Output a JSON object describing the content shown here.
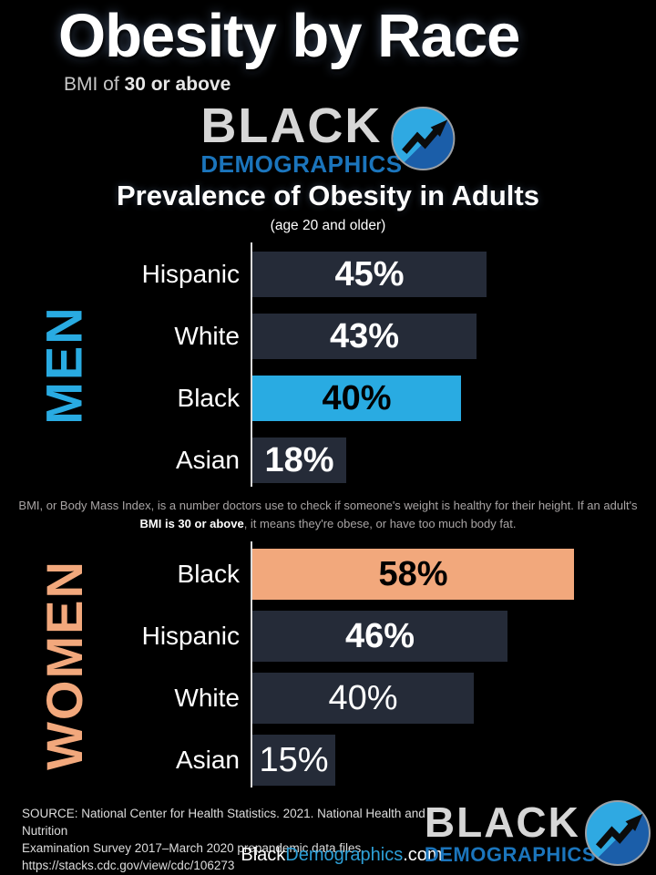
{
  "header": {
    "title": "Obesity by Race",
    "subtitle_prefix": "BMI of ",
    "subtitle_bold": "30 or above"
  },
  "logo": {
    "word1": "BLACK",
    "word2": "DEMOGRAPHICS"
  },
  "chart_heading": {
    "title": "Prevalence of Obesity in Adults",
    "subtitle": "(age 20 and older)"
  },
  "chart_data": {
    "type": "bar",
    "orientation": "horizontal",
    "title": "Prevalence of Obesity in Adults",
    "subtitle": "(age 20 and older)",
    "value_unit": "%",
    "xlim": [
      0,
      75
    ],
    "grid": false,
    "legend": false,
    "series": [
      {
        "name": "MEN",
        "accent_color": "#29abe2",
        "bar_color": "#252b38",
        "rows": [
          {
            "category": "Hispanic",
            "value": 45,
            "display": "45%",
            "highlight": false,
            "value_bold": true
          },
          {
            "category": "White",
            "value": 43,
            "display": "43%",
            "highlight": false,
            "value_bold": true
          },
          {
            "category": "Black",
            "value": 40,
            "display": "40%",
            "highlight": true,
            "value_bold": true
          },
          {
            "category": "Asian",
            "value": 18,
            "display": "18%",
            "highlight": false,
            "value_bold": true
          }
        ]
      },
      {
        "name": "WOMEN",
        "accent_color": "#f2a87c",
        "bar_color": "#252b38",
        "rows": [
          {
            "category": "Black",
            "value": 58,
            "display": "58%",
            "highlight": true,
            "value_bold": true
          },
          {
            "category": "Hispanic",
            "value": 46,
            "display": "46%",
            "highlight": false,
            "value_bold": true
          },
          {
            "category": "White",
            "value": 40,
            "display": "40%",
            "highlight": false,
            "value_bold": false
          },
          {
            "category": "Asian",
            "value": 15,
            "display": "15%",
            "highlight": false,
            "value_bold": false
          }
        ]
      }
    ]
  },
  "note": {
    "line1": "BMI, or Body Mass Index, is a number doctors use to check if someone's weight is healthy for their height. If an adult's",
    "line2_bold": "BMI is 30 or above",
    "line2_rest": ", it means they're obese, or have too much body fat."
  },
  "footer": {
    "source_line1": "SOURCE: National Center for Health Statistics. 2021. National Health and Nutrition",
    "source_line2": "Examination Survey 2017–March 2020 prepandemic data files.",
    "source_line3": "https://stacks.cdc.gov/view/cdc/106273",
    "website_part1": "Black",
    "website_part2": "Demographics",
    "website_part3": ".com"
  }
}
